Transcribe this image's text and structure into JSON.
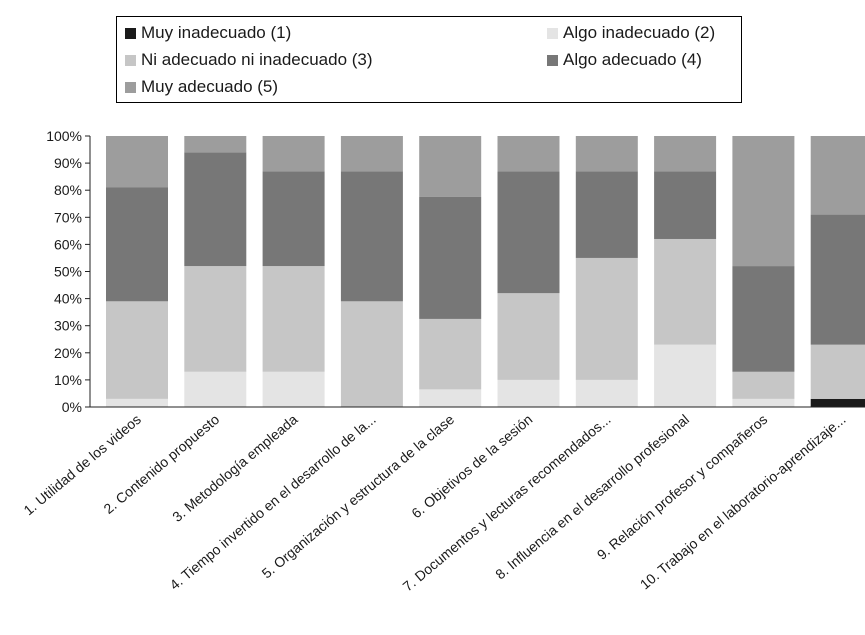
{
  "chart_data": {
    "type": "bar",
    "stacked": true,
    "percent": true,
    "categories": [
      "1. Utilidad de los videos",
      "2. Contenido propuesto",
      "3. Metodología empleada",
      "4. Tiempo invertido en el desarrollo de la...",
      "5. Organización y estructura de la clase",
      "6. Objetivos de la sesión",
      "7. Documentos y lecturas recomendados...",
      "8. Influencia en el desarrollo profesional",
      "9. Relación profesor y compañeros",
      "10. Trabajo en el laboratorio-aprendizaje..."
    ],
    "series": [
      {
        "name": "Muy inadecuado (1)",
        "color": "#1a1a1a",
        "values": [
          0,
          0,
          0,
          0,
          0,
          0,
          0,
          0,
          0,
          3
        ]
      },
      {
        "name": "Algo inadecuado (2)",
        "color": "#e4e4e4",
        "values": [
          3,
          13,
          13,
          0,
          6.5,
          10,
          10,
          23,
          3,
          0
        ]
      },
      {
        "name": "Ni adecuado ni inadecuado (3)",
        "color": "#c6c6c6",
        "values": [
          36,
          39,
          39,
          39,
          26,
          32,
          45,
          39,
          10,
          20
        ]
      },
      {
        "name": "Algo adecuado (4)",
        "color": "#777777",
        "values": [
          42,
          42,
          35,
          48,
          45,
          45,
          32,
          25,
          39,
          48
        ]
      },
      {
        "name": "Muy adecuado (5)",
        "color": "#9d9d9d",
        "values": [
          19,
          6,
          13,
          13,
          22.5,
          13,
          13,
          13,
          48,
          29
        ]
      }
    ],
    "yticks": [
      "0%",
      "10%",
      "20%",
      "30%",
      "40%",
      "50%",
      "60%",
      "70%",
      "80%",
      "90%",
      "100%"
    ],
    "ylim": [
      0,
      100
    ],
    "legend_position": "top",
    "grid": false,
    "xlabel": "",
    "ylabel": ""
  }
}
